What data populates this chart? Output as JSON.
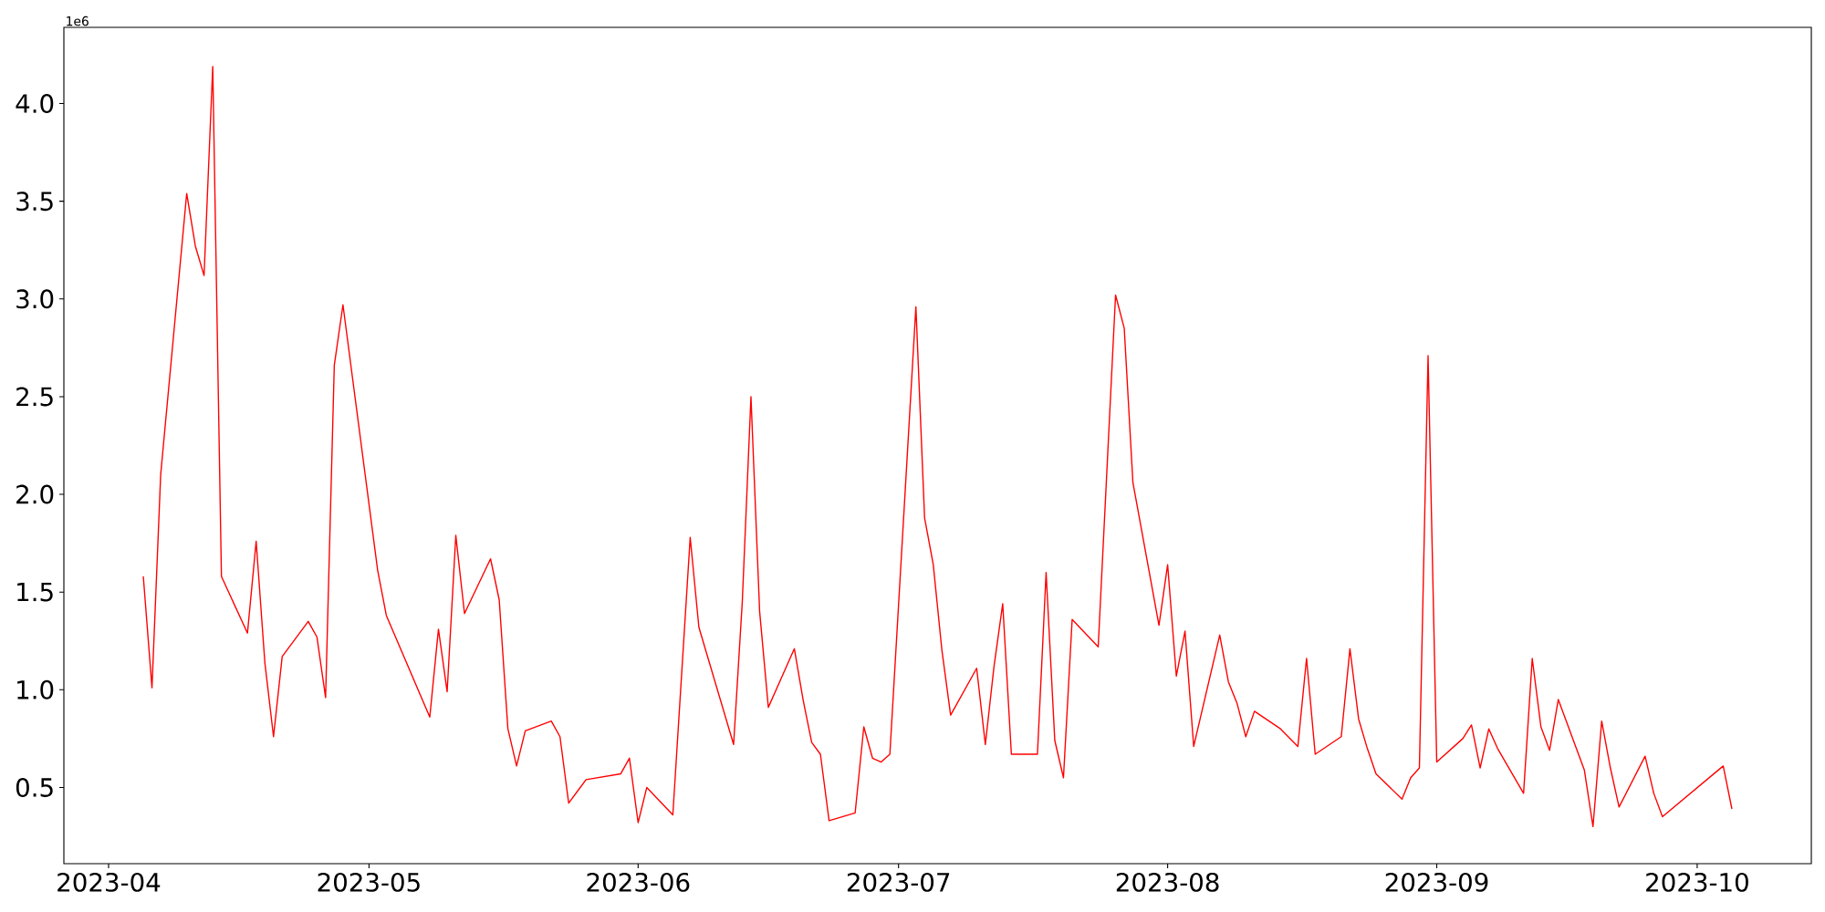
{
  "chart_data": {
    "type": "line",
    "x": [
      "2023-04-05",
      "2023-04-06",
      "2023-04-07",
      "2023-04-10",
      "2023-04-11",
      "2023-04-12",
      "2023-04-13",
      "2023-04-14",
      "2023-04-17",
      "2023-04-18",
      "2023-04-19",
      "2023-04-20",
      "2023-04-21",
      "2023-04-24",
      "2023-04-25",
      "2023-04-26",
      "2023-04-27",
      "2023-04-28",
      "2023-05-02",
      "2023-05-03",
      "2023-05-08",
      "2023-05-09",
      "2023-05-10",
      "2023-05-11",
      "2023-05-12",
      "2023-05-15",
      "2023-05-16",
      "2023-05-17",
      "2023-05-18",
      "2023-05-19",
      "2023-05-22",
      "2023-05-23",
      "2023-05-24",
      "2023-05-25",
      "2023-05-26",
      "2023-05-30",
      "2023-05-31",
      "2023-06-01",
      "2023-06-02",
      "2023-06-05",
      "2023-06-07",
      "2023-06-08",
      "2023-06-12",
      "2023-06-13",
      "2023-06-14",
      "2023-06-15",
      "2023-06-16",
      "2023-06-19",
      "2023-06-20",
      "2023-06-21",
      "2023-06-22",
      "2023-06-23",
      "2023-06-26",
      "2023-06-27",
      "2023-06-28",
      "2023-06-29",
      "2023-06-30",
      "2023-07-03",
      "2023-07-04",
      "2023-07-05",
      "2023-07-06",
      "2023-07-07",
      "2023-07-10",
      "2023-07-11",
      "2023-07-12",
      "2023-07-13",
      "2023-07-14",
      "2023-07-17",
      "2023-07-18",
      "2023-07-19",
      "2023-07-20",
      "2023-07-21",
      "2023-07-24",
      "2023-07-26",
      "2023-07-27",
      "2023-07-28",
      "2023-07-31",
      "2023-08-01",
      "2023-08-02",
      "2023-08-03",
      "2023-08-04",
      "2023-08-07",
      "2023-08-08",
      "2023-08-09",
      "2023-08-10",
      "2023-08-11",
      "2023-08-14",
      "2023-08-16",
      "2023-08-17",
      "2023-08-18",
      "2023-08-21",
      "2023-08-22",
      "2023-08-23",
      "2023-08-24",
      "2023-08-25",
      "2023-08-28",
      "2023-08-29",
      "2023-08-30",
      "2023-08-31",
      "2023-09-01",
      "2023-09-04",
      "2023-09-05",
      "2023-09-06",
      "2023-09-07",
      "2023-09-08",
      "2023-09-11",
      "2023-09-12",
      "2023-09-13",
      "2023-09-14",
      "2023-09-15",
      "2023-09-18",
      "2023-09-19",
      "2023-09-20",
      "2023-09-21",
      "2023-09-22",
      "2023-09-25",
      "2023-09-26",
      "2023-09-27",
      "2023-10-04",
      "2023-10-05"
    ],
    "series": [
      {
        "color": "#ff0000",
        "values": [
          1.58,
          1.01,
          2.1,
          3.54,
          3.27,
          3.12,
          4.19,
          1.58,
          1.29,
          1.76,
          1.14,
          0.76,
          1.17,
          1.35,
          1.27,
          0.96,
          2.66,
          2.97,
          1.61,
          1.38,
          0.86,
          1.31,
          0.99,
          1.79,
          1.39,
          1.67,
          1.46,
          0.8,
          0.61,
          0.79,
          0.84,
          0.76,
          0.42,
          0.48,
          0.54,
          0.57,
          0.65,
          0.32,
          0.5,
          0.36,
          1.78,
          1.32,
          0.72,
          1.45,
          2.5,
          1.4,
          0.91,
          1.21,
          0.95,
          0.73,
          0.67,
          0.33,
          0.37,
          0.81,
          0.65,
          0.63,
          0.67,
          2.96,
          1.88,
          1.64,
          1.2,
          0.87,
          1.11,
          0.72,
          1.12,
          1.44,
          0.67,
          0.67,
          1.6,
          0.74,
          0.55,
          1.36,
          1.22,
          3.02,
          2.85,
          2.06,
          1.33,
          1.64,
          1.07,
          1.3,
          0.71,
          1.28,
          1.04,
          0.93,
          0.76,
          0.89,
          0.8,
          0.71,
          1.16,
          0.67,
          0.76,
          1.21,
          0.85,
          0.7,
          0.57,
          0.44,
          0.55,
          0.6,
          2.71,
          0.63,
          0.75,
          0.82,
          0.6,
          0.8,
          0.7,
          0.47,
          1.16,
          0.81,
          0.69,
          0.95,
          0.59,
          0.3,
          0.84,
          0.6,
          0.4,
          0.66,
          0.47,
          0.35,
          0.61,
          0.39
        ]
      }
    ],
    "xlim": [
      "2023-03-26T20:24",
      "2023-10-14T03:36"
    ],
    "xticks": [
      "2023-04",
      "2023-05",
      "2023-06",
      "2023-07",
      "2023-08",
      "2023-09",
      "2023-10"
    ],
    "ylim": [
      0.11,
      4.39
    ],
    "yticks": [
      {
        "value": 0.5,
        "label": "0.5"
      },
      {
        "value": 1,
        "label": "1.0"
      },
      {
        "value": 1.5,
        "label": "1.5"
      },
      {
        "value": 2,
        "label": "2.0"
      },
      {
        "value": 2.5,
        "label": "2.5"
      },
      {
        "value": 3,
        "label": "3.0"
      },
      {
        "value": 3.5,
        "label": "3.5"
      },
      {
        "value": 4,
        "label": "4.0"
      }
    ],
    "annotations": [
      "1e6"
    ]
  }
}
